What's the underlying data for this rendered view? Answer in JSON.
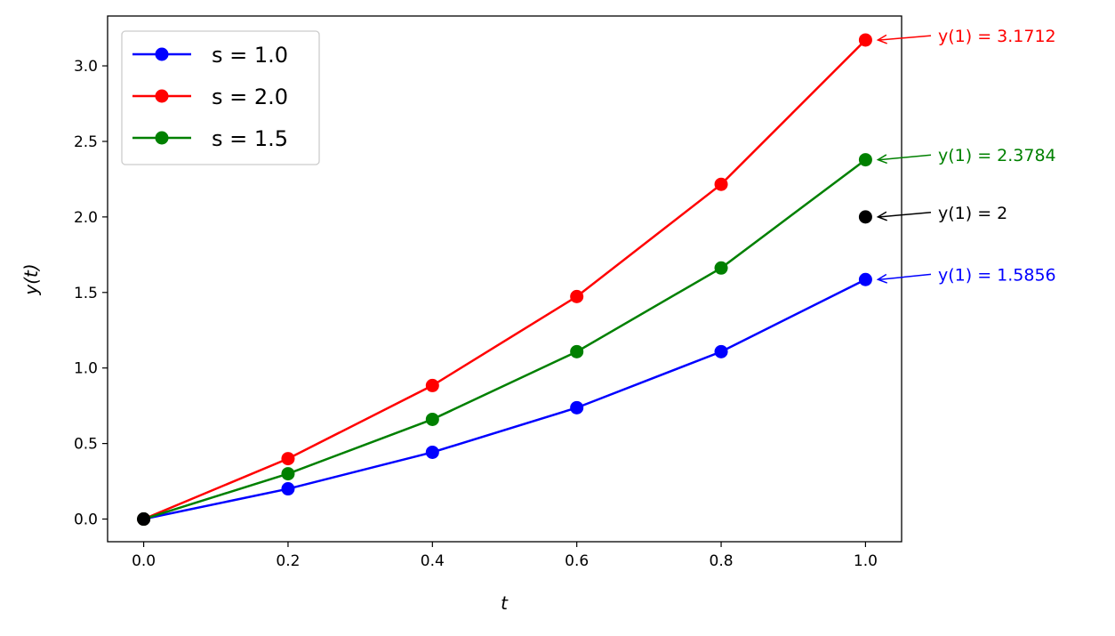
{
  "chart_data": {
    "type": "line",
    "title": "",
    "xlabel": "t",
    "ylabel": "y(t)",
    "xlim": [
      -0.05,
      1.05
    ],
    "ylim": [
      -0.15,
      3.33
    ],
    "xticks": [
      "0.0",
      "0.2",
      "0.4",
      "0.6",
      "0.8",
      "1.0"
    ],
    "yticks": [
      "0.0",
      "0.5",
      "1.0",
      "1.5",
      "2.0",
      "2.5",
      "3.0"
    ],
    "grid": false,
    "legend_position": "top-left",
    "x": [
      0.0,
      0.2,
      0.4,
      0.6,
      0.8,
      1.0
    ],
    "series": [
      {
        "name": "s = 1.0",
        "color": "#0000ff",
        "values": [
          0.0,
          0.2,
          0.442,
          0.737,
          1.108,
          1.5856
        ]
      },
      {
        "name": "s = 2.0",
        "color": "#ff0000",
        "values": [
          0.0,
          0.4,
          0.884,
          1.473,
          2.216,
          3.1712
        ]
      },
      {
        "name": "s = 1.5",
        "color": "#008000",
        "values": [
          0.0,
          0.3,
          0.66,
          1.108,
          1.662,
          2.3784
        ]
      }
    ],
    "extra_points": [
      {
        "x": 0.0,
        "y": 0.0,
        "color": "#000000"
      },
      {
        "x": 1.0,
        "y": 2.0,
        "color": "#000000"
      }
    ],
    "annotations": [
      {
        "text": "y(1) = 3.1712",
        "x": 1.0,
        "y": 3.1712,
        "text_y": 3.2,
        "color": "#ff0000"
      },
      {
        "text": "y(1) = 2.3784",
        "x": 1.0,
        "y": 2.3784,
        "text_y": 2.41,
        "color": "#008000"
      },
      {
        "text": "y(1) = 2",
        "x": 1.0,
        "y": 2.0,
        "text_y": 2.03,
        "color": "#000000"
      },
      {
        "text": "y(1) = 1.5856",
        "x": 1.0,
        "y": 1.5856,
        "text_y": 1.62,
        "color": "#0000ff"
      }
    ]
  }
}
